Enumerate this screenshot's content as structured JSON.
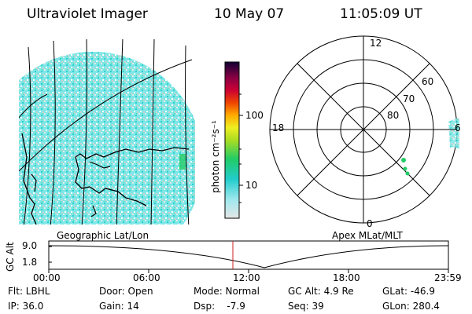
{
  "header": {
    "instrument": "Ultraviolet Imager",
    "date": "10 May 07",
    "time": "11:05:09 UT"
  },
  "colorbar": {
    "unit_label": "photon cm⁻²s⁻¹",
    "ticks": [
      "100",
      "10"
    ]
  },
  "polar": {
    "mlt_labels": [
      "12",
      "18",
      "6",
      "0"
    ],
    "lat_labels": [
      "60",
      "70",
      "80"
    ]
  },
  "panels": {
    "left_caption": "Geographic Lat/Lon",
    "right_caption": "Apex MLat/MLT"
  },
  "altitude_plot": {
    "ylabel": "GC Alt",
    "yticks": [
      "9.0",
      "1.8"
    ],
    "xticks": [
      "00:00",
      "06:00",
      "12:00",
      "18:00",
      "23:59"
    ],
    "marker_time": "11:05"
  },
  "info": {
    "flt": "Flt: LBHL",
    "ip": "IP: 36.0",
    "door": "Door: Open",
    "gain": "Gain: 14",
    "mode": "Mode: Normal",
    "dsp": "Dsp:    -7.9",
    "gcalt": "GC Alt: 4.9 Re",
    "seq": "Seq: 39",
    "glat": "GLat: -46.9",
    "glon": "GLon: 280.4"
  },
  "colors": {
    "emission_cyan": "#33dddd",
    "emission_green": "#22cc66",
    "emission_grey": "#d8d8d8",
    "marker_red": "#cc2222"
  }
}
